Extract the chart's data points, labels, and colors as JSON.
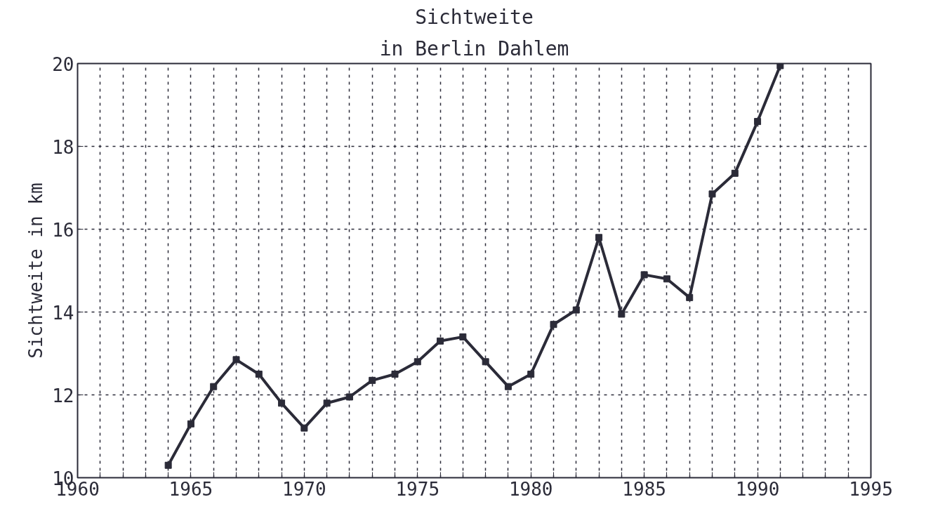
{
  "chart_data": {
    "type": "line",
    "title": "Sichtweite",
    "subtitle": "in Berlin Dahlem",
    "ylabel": "Sichtweite in km",
    "x": [
      1964,
      1965,
      1966,
      1967,
      1968,
      1969,
      1970,
      1971,
      1972,
      1973,
      1974,
      1975,
      1976,
      1977,
      1978,
      1979,
      1980,
      1981,
      1982,
      1983,
      1984,
      1985,
      1986,
      1987,
      1988,
      1989,
      1990,
      1991
    ],
    "series": [
      {
        "color": "#2b2b38",
        "values": [
          10.3,
          11.3,
          12.2,
          12.85,
          12.5,
          11.8,
          11.2,
          11.8,
          11.95,
          12.35,
          12.5,
          12.8,
          13.3,
          13.4,
          12.8,
          12.2,
          12.5,
          13.7,
          14.05,
          15.8,
          13.95,
          14.9,
          14.8,
          14.35,
          16.85,
          17.35,
          18.6,
          19.95
        ]
      }
    ],
    "xlim": [
      1960,
      1995
    ],
    "xticks": [
      1960,
      {
        "value": 1961,
        "label": null
      },
      {
        "value": 1962,
        "label": null
      },
      {
        "value": 1963,
        "label": null
      },
      {
        "value": 1964,
        "label": null
      },
      1965,
      {
        "value": 1966,
        "label": null
      },
      {
        "value": 1967,
        "label": null
      },
      {
        "value": 1968,
        "label": null
      },
      {
        "value": 1969,
        "label": null
      },
      1970,
      {
        "value": 1971,
        "label": null
      },
      {
        "value": 1972,
        "label": null
      },
      {
        "value": 1973,
        "label": null
      },
      {
        "value": 1974,
        "label": null
      },
      1975,
      {
        "value": 1976,
        "label": null
      },
      {
        "value": 1977,
        "label": null
      },
      {
        "value": 1978,
        "label": null
      },
      {
        "value": 1979,
        "label": null
      },
      1980,
      {
        "value": 1981,
        "label": null
      },
      {
        "value": 1982,
        "label": null
      },
      {
        "value": 1983,
        "label": null
      },
      {
        "value": 1984,
        "label": null
      },
      1985,
      {
        "value": 1986,
        "label": null
      },
      {
        "value": 1987,
        "label": null
      },
      {
        "value": 1988,
        "label": null
      },
      {
        "value": 1989,
        "label": null
      },
      1990,
      {
        "value": 1991,
        "label": null
      },
      {
        "value": 1992,
        "label": null
      },
      {
        "value": 1993,
        "label": null
      },
      {
        "value": 1994,
        "label": null
      },
      1995
    ],
    "ylim": [
      10,
      20
    ],
    "yticks": [
      10,
      12,
      14,
      16,
      18,
      20
    ],
    "grid": true,
    "marker": "square",
    "line_style": "solid"
  }
}
